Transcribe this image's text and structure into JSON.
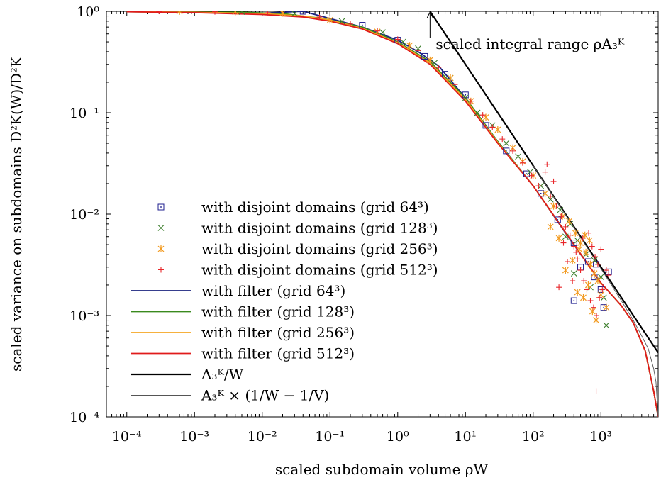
{
  "chart_data": {
    "type": "scatter",
    "xlabel": "scaled subdomain volume ρW",
    "ylabel": "scaled variance on subdomains D²K(W)/D²K",
    "xscale": "log",
    "yscale": "log",
    "xlim": [
      5e-05,
      7000
    ],
    "ylim": [
      0.0001,
      1
    ],
    "x_ticks": [
      {
        "value": 0.0001,
        "label": "10⁻⁴"
      },
      {
        "value": 0.001,
        "label": "10⁻³"
      },
      {
        "value": 0.01,
        "label": "10⁻²"
      },
      {
        "value": 0.1,
        "label": "10⁻¹"
      },
      {
        "value": 1,
        "label": "10⁰"
      },
      {
        "value": 10,
        "label": "10¹"
      },
      {
        "value": 100,
        "label": "10²"
      },
      {
        "value": 1000,
        "label": "10³"
      }
    ],
    "y_ticks": [
      {
        "value": 0.0001,
        "label": "10⁻⁴"
      },
      {
        "value": 0.001,
        "label": "10⁻³"
      },
      {
        "value": 0.01,
        "label": "10⁻²"
      },
      {
        "value": 0.1,
        "label": "10⁻¹"
      },
      {
        "value": 1,
        "label": "10⁰"
      }
    ],
    "grid": false,
    "legend_position": "lower-left",
    "annotation": {
      "text": "scaled integral range ρA₃ᴷ",
      "x": 3,
      "y": 1
    },
    "series": [
      {
        "name": "with disjoint domains (grid 64³)",
        "kind": "points",
        "marker": "square",
        "color": "#1f1f8f",
        "points": [
          [
            0.04,
            1.0
          ],
          [
            0.3,
            0.73
          ],
          [
            1.0,
            0.52
          ],
          [
            2.5,
            0.36
          ],
          [
            5,
            0.24
          ],
          [
            10,
            0.15
          ],
          [
            20,
            0.075
          ],
          [
            40,
            0.042
          ],
          [
            80,
            0.025
          ],
          [
            130,
            0.016
          ],
          [
            230,
            0.0088
          ],
          [
            400,
            0.0052
          ],
          [
            500,
            0.003
          ],
          [
            650,
            0.0034
          ],
          [
            800,
            0.0024
          ],
          [
            1000,
            0.0018
          ],
          [
            1300,
            0.0027
          ],
          [
            400,
            0.0014
          ],
          [
            850,
            0.0032
          ],
          [
            1100,
            0.0012
          ]
        ]
      },
      {
        "name": "with disjoint domains (grid 128³)",
        "kind": "points",
        "marker": "cross",
        "color": "#3a7d2a",
        "points": [
          [
            0.005,
            0.99
          ],
          [
            0.03,
            0.95
          ],
          [
            0.15,
            0.8
          ],
          [
            0.6,
            0.62
          ],
          [
            1.2,
            0.5
          ],
          [
            2,
            0.43
          ],
          [
            3.5,
            0.31
          ],
          [
            6,
            0.22
          ],
          [
            10,
            0.14
          ],
          [
            15,
            0.1
          ],
          [
            25,
            0.075
          ],
          [
            40,
            0.05
          ],
          [
            60,
            0.037
          ],
          [
            90,
            0.026
          ],
          [
            130,
            0.019
          ],
          [
            180,
            0.014
          ],
          [
            250,
            0.011
          ],
          [
            350,
            0.008
          ],
          [
            450,
            0.0055
          ],
          [
            600,
            0.004
          ],
          [
            800,
            0.0035
          ],
          [
            1000,
            0.0024
          ],
          [
            1200,
            0.0008
          ],
          [
            400,
            0.0026
          ],
          [
            700,
            0.0019
          ],
          [
            300,
            0.006
          ],
          [
            1100,
            0.0015
          ]
        ]
      },
      {
        "name": "with disjoint domains (grid 256³)",
        "kind": "points",
        "marker": "asterisk",
        "color": "#f29a1f",
        "points": [
          [
            0.0006,
            1.0
          ],
          [
            0.004,
            0.99
          ],
          [
            0.02,
            0.96
          ],
          [
            0.1,
            0.82
          ],
          [
            0.5,
            0.63
          ],
          [
            1.5,
            0.46
          ],
          [
            3,
            0.33
          ],
          [
            6,
            0.22
          ],
          [
            12,
            0.13
          ],
          [
            20,
            0.09
          ],
          [
            30,
            0.068
          ],
          [
            50,
            0.045
          ],
          [
            70,
            0.033
          ],
          [
            100,
            0.024
          ],
          [
            150,
            0.016
          ],
          [
            200,
            0.012
          ],
          [
            270,
            0.0095
          ],
          [
            340,
            0.0085
          ],
          [
            420,
            0.0065
          ],
          [
            500,
            0.0052
          ],
          [
            600,
            0.0042
          ],
          [
            700,
            0.0032
          ],
          [
            800,
            0.0026
          ],
          [
            900,
            0.0022
          ],
          [
            1000,
            0.0016
          ],
          [
            1200,
            0.0012
          ],
          [
            450,
            0.0017
          ],
          [
            550,
            0.0015
          ],
          [
            650,
            0.002
          ],
          [
            750,
            0.0011
          ],
          [
            850,
            0.0009
          ],
          [
            300,
            0.0028
          ],
          [
            380,
            0.0035
          ],
          [
            480,
            0.0045
          ],
          [
            580,
            0.0062
          ],
          [
            680,
            0.0055
          ],
          [
            180,
            0.0075
          ],
          [
            240,
            0.0058
          ]
        ]
      },
      {
        "name": "with disjoint domains (grid 512³)",
        "kind": "points",
        "marker": "plus",
        "color": "#e8262a",
        "points": [
          [
            0.0003,
            1.0
          ],
          [
            0.002,
            0.99
          ],
          [
            0.012,
            0.97
          ],
          [
            0.07,
            0.88
          ],
          [
            0.2,
            0.75
          ],
          [
            0.5,
            0.64
          ],
          [
            1,
            0.53
          ],
          [
            2,
            0.41
          ],
          [
            4,
            0.28
          ],
          [
            7,
            0.19
          ],
          [
            12,
            0.13
          ],
          [
            18,
            0.095
          ],
          [
            25,
            0.072
          ],
          [
            35,
            0.055
          ],
          [
            50,
            0.042
          ],
          [
            70,
            0.032
          ],
          [
            95,
            0.024
          ],
          [
            120,
            0.019
          ],
          [
            150,
            0.026
          ],
          [
            180,
            0.015
          ],
          [
            220,
            0.012
          ],
          [
            260,
            0.0095
          ],
          [
            300,
            0.0075
          ],
          [
            350,
            0.0062
          ],
          [
            400,
            0.0048
          ],
          [
            450,
            0.0036
          ],
          [
            500,
            0.0028
          ],
          [
            560,
            0.0022
          ],
          [
            620,
            0.0018
          ],
          [
            700,
            0.0014
          ],
          [
            780,
            0.0012
          ],
          [
            860,
            0.001
          ],
          [
            950,
            0.0015
          ],
          [
            1050,
            0.0018
          ],
          [
            1200,
            0.0028
          ],
          [
            1300,
            0.0025
          ],
          [
            850,
            0.00018
          ],
          [
            320,
            0.0034
          ],
          [
            380,
            0.0022
          ],
          [
            430,
            0.0042
          ],
          [
            540,
            0.0058
          ],
          [
            660,
            0.0065
          ],
          [
            740,
            0.0048
          ],
          [
            820,
            0.0038
          ],
          [
            900,
            0.0032
          ],
          [
            1000,
            0.0045
          ],
          [
            240,
            0.0019
          ],
          [
            280,
            0.0052
          ],
          [
            160,
            0.031
          ],
          [
            200,
            0.021
          ]
        ]
      },
      {
        "name": "with filter (grid 64³)",
        "kind": "line",
        "color": "#1a237e",
        "points": [
          [
            0.0001,
            0.99
          ],
          [
            0.001,
            0.98
          ],
          [
            0.01,
            0.96
          ],
          [
            0.04,
            1.0
          ],
          [
            0.3,
            0.7
          ],
          [
            1.0,
            0.52
          ],
          [
            2,
            0.4
          ],
          [
            4,
            0.29
          ],
          [
            10,
            0.14
          ],
          [
            30,
            0.052
          ],
          [
            100,
            0.019
          ],
          [
            300,
            0.0065
          ],
          [
            1000,
            0.0021
          ],
          [
            2000,
            0.00125
          ],
          [
            3000,
            0.00085
          ],
          [
            4500,
            0.00045
          ],
          [
            6000,
            0.00018
          ],
          [
            7000,
            0.0001
          ]
        ]
      },
      {
        "name": "with filter (grid 128³)",
        "kind": "line",
        "color": "#3a8a1e",
        "points": [
          [
            0.0001,
            0.99
          ],
          [
            0.001,
            0.98
          ],
          [
            0.005,
            0.98
          ],
          [
            0.02,
            0.95
          ],
          [
            0.08,
            0.85
          ],
          [
            0.3,
            0.7
          ],
          [
            1,
            0.5
          ],
          [
            3,
            0.32
          ],
          [
            10,
            0.14
          ],
          [
            30,
            0.052
          ],
          [
            100,
            0.019
          ],
          [
            300,
            0.0066
          ],
          [
            1000,
            0.0021
          ],
          [
            2000,
            0.00125
          ],
          [
            3000,
            0.00085
          ],
          [
            4500,
            0.00045
          ],
          [
            6000,
            0.00018
          ],
          [
            7000,
            0.0001
          ]
        ]
      },
      {
        "name": "with filter (grid 256³)",
        "kind": "line",
        "color": "#f5a623",
        "points": [
          [
            0.0001,
            0.99
          ],
          [
            0.001,
            0.98
          ],
          [
            0.01,
            0.95
          ],
          [
            0.04,
            0.9
          ],
          [
            0.1,
            0.82
          ],
          [
            0.3,
            0.68
          ],
          [
            1,
            0.49
          ],
          [
            3,
            0.31
          ],
          [
            10,
            0.135
          ],
          [
            30,
            0.051
          ],
          [
            100,
            0.019
          ],
          [
            300,
            0.0066
          ],
          [
            1000,
            0.0021
          ],
          [
            2000,
            0.00125
          ],
          [
            3000,
            0.00085
          ],
          [
            4500,
            0.00045
          ],
          [
            6000,
            0.00018
          ],
          [
            7000,
            0.0001
          ]
        ]
      },
      {
        "name": "with filter (grid 512³)",
        "kind": "line",
        "color": "#e01b1b",
        "points": [
          [
            0.0001,
            0.99
          ],
          [
            0.001,
            0.97
          ],
          [
            0.01,
            0.93
          ],
          [
            0.04,
            0.88
          ],
          [
            0.1,
            0.8
          ],
          [
            0.3,
            0.67
          ],
          [
            1,
            0.48
          ],
          [
            3,
            0.3
          ],
          [
            10,
            0.13
          ],
          [
            30,
            0.05
          ],
          [
            100,
            0.019
          ],
          [
            300,
            0.0066
          ],
          [
            1000,
            0.0021
          ],
          [
            2000,
            0.00125
          ],
          [
            3000,
            0.00085
          ],
          [
            4500,
            0.00045
          ],
          [
            6000,
            0.00018
          ],
          [
            7000,
            0.0001
          ]
        ]
      },
      {
        "name": "A₃ᴷ/W",
        "kind": "line",
        "color": "#000000",
        "width": 2.2,
        "points": [
          [
            3,
            1.0
          ],
          [
            7000,
            0.00043
          ]
        ]
      },
      {
        "name": "A₃ᴷ × (1/W − 1/V)",
        "kind": "line",
        "color": "#555555",
        "width": 0.9,
        "points": [
          [
            100,
            0.03
          ],
          [
            300,
            0.0099
          ],
          [
            1000,
            0.0029
          ],
          [
            2000,
            0.0014
          ],
          [
            3000,
            0.0009
          ],
          [
            4000,
            0.00063
          ],
          [
            5000,
            0.00047
          ],
          [
            6000,
            0.0003
          ],
          [
            6500,
            0.00022
          ],
          [
            7000,
            0.0001
          ]
        ]
      }
    ]
  }
}
